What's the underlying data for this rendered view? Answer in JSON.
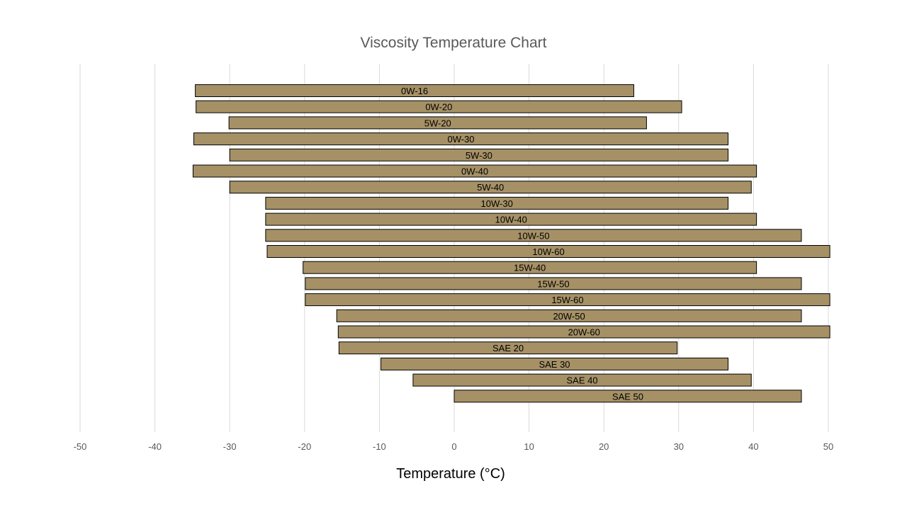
{
  "chart_data": {
    "type": "bar",
    "orientation": "horizontal",
    "title": "Viscosity Temperature Chart",
    "xlabel": "Temperature (°C)",
    "ylabel": "",
    "xlim": [
      -50,
      50
    ],
    "x_ticks": [
      "-50",
      "-40",
      "-30",
      "-20",
      "-10",
      "0",
      "10",
      "20",
      "30",
      "40",
      "50"
    ],
    "grid": true,
    "legend": "none",
    "bar_color": "#A69166",
    "bar_edge_color": "#000000",
    "categories": [
      "0W-16",
      "0W-20",
      "5W-20",
      "0W-30",
      "5W-30",
      "0W-40",
      "5W-40",
      "10W-30",
      "10W-40",
      "10W-50",
      "10W-60",
      "15W-40",
      "15W-50",
      "15W-60",
      "20W-50",
      "20W-60",
      "SAE 20",
      "SAE 30",
      "SAE 40",
      "SAE 50"
    ],
    "ranges": [
      [
        -34.6,
        24
      ],
      [
        -34.5,
        30.4
      ],
      [
        -30.1,
        25.7
      ],
      [
        -34.8,
        36.6
      ],
      [
        -30,
        36.6
      ],
      [
        -34.9,
        40.4
      ],
      [
        -30,
        39.7
      ],
      [
        -25.2,
        36.6
      ],
      [
        -25.2,
        40.4
      ],
      [
        -25.2,
        46.4
      ],
      [
        -25,
        50.2
      ],
      [
        -20.2,
        40.4
      ],
      [
        -19.9,
        46.4
      ],
      [
        -19.9,
        50.2
      ],
      [
        -15.7,
        46.4
      ],
      [
        -15.5,
        50.2
      ],
      [
        -15.4,
        29.8
      ],
      [
        -9.8,
        36.6
      ],
      [
        -5.5,
        39.7
      ],
      [
        0,
        46.4
      ]
    ]
  }
}
